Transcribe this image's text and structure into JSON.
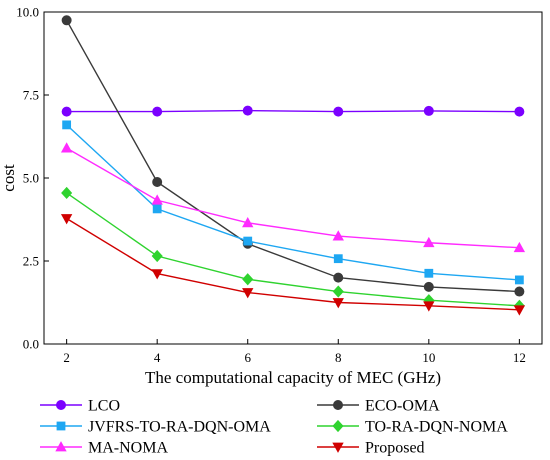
{
  "chart_data": {
    "type": "line",
    "xlabel": "The computational capacity of MEC (GHz)",
    "ylabel": "cost",
    "x": [
      2,
      4,
      6,
      8,
      10,
      12
    ],
    "xlim": [
      1.5,
      12.5
    ],
    "ylim": [
      0,
      10
    ],
    "xticks": [
      "2",
      "4",
      "6",
      "8",
      "10",
      "12"
    ],
    "yticks": [
      "0.0",
      "2.5",
      "5.0",
      "7.5",
      "10.0"
    ],
    "legend_placement": "bottom",
    "grid": false,
    "series": [
      {
        "name": "LCO",
        "color": "#7b00ff",
        "marker": "circle",
        "values": [
          7.0,
          7.0,
          7.03,
          7.0,
          7.02,
          7.0
        ]
      },
      {
        "name": "ECO-OMA",
        "color": "#3a3a3a",
        "marker": "circle",
        "values": [
          9.75,
          4.88,
          3.02,
          2.0,
          1.72,
          1.58
        ]
      },
      {
        "name": "JVFRS-TO-RA-DQN-OMA",
        "color": "#1ea7f2",
        "marker": "square",
        "values": [
          6.6,
          4.07,
          3.1,
          2.57,
          2.13,
          1.93
        ]
      },
      {
        "name": "TO-RA-DQN-NOMA",
        "color": "#2fd32f",
        "marker": "diamond",
        "values": [
          4.55,
          2.65,
          1.95,
          1.58,
          1.32,
          1.15
        ]
      },
      {
        "name": "MA-NOMA",
        "color": "#ff2bff",
        "marker": "triangle-up",
        "values": [
          5.9,
          4.33,
          3.65,
          3.25,
          3.05,
          2.9
        ]
      },
      {
        "name": "Proposed",
        "color": "#d00000",
        "marker": "triangle-down",
        "values": [
          3.78,
          2.12,
          1.55,
          1.25,
          1.15,
          1.03
        ]
      }
    ]
  }
}
